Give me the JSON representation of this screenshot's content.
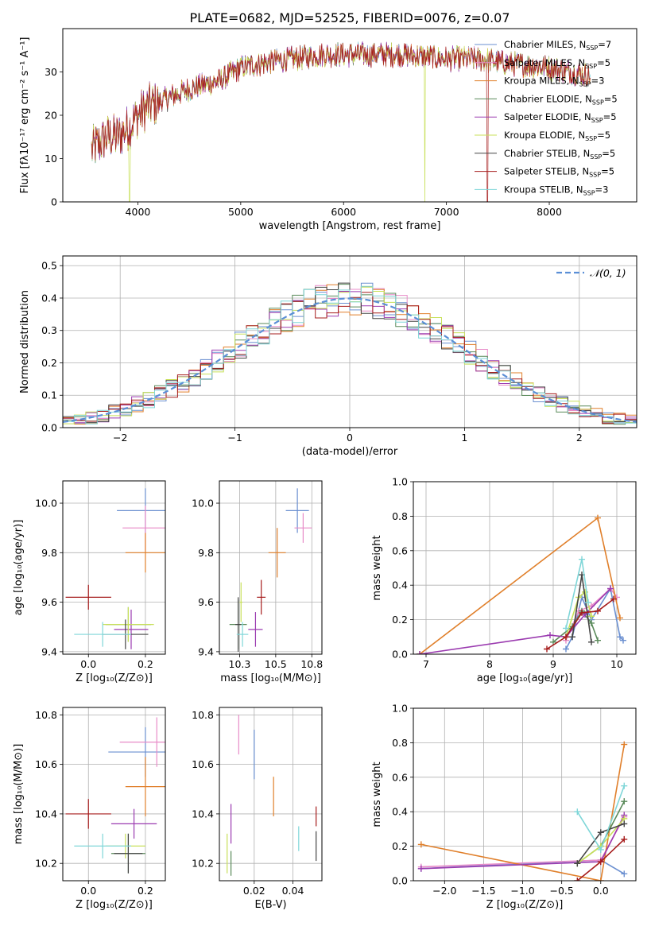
{
  "figure": {
    "title": "PLATE=0682, MJD=52525, FIBERID=0076, z=0.07"
  },
  "series_colors": [
    "#6a8fd0",
    "#e88bc8",
    "#e07f2a",
    "#5a8a5a",
    "#9b3bb0",
    "#c8e05a",
    "#444444",
    "#a61c1c",
    "#7fd6d8"
  ],
  "chart_data": [
    {
      "id": "spectrum",
      "type": "line",
      "title": "PLATE=0682, MJD=52525, FIBERID=0076, z=0.07",
      "xlabel": "wavelength [Angstrom, rest frame]",
      "ylabel": "Flux [fλ10⁻¹⁷ erg cm⁻² s⁻¹ A⁻¹]",
      "xlim": [
        3270,
        8850
      ],
      "ylim": [
        0,
        40
      ],
      "xticks": [
        4000,
        5000,
        6000,
        7000,
        8000
      ],
      "yticks": [
        0,
        10,
        20,
        30
      ],
      "legend_position": "top-right",
      "continuum_x": [
        3550,
        3700,
        3800,
        3900,
        4000,
        4100,
        4300,
        4500,
        4800,
        5000,
        5200,
        5500,
        5800,
        6000,
        6300,
        6600,
        7000,
        7300,
        7600,
        8000,
        8400
      ],
      "continuum_y": [
        12,
        15,
        15,
        17,
        20,
        22,
        24,
        26,
        28,
        31,
        32,
        33,
        34,
        34,
        34,
        34,
        33,
        33,
        32,
        31,
        29
      ],
      "series": [
        {
          "name": "Chabrier MILES, N",
          "sub": "SSP",
          "suffix": "=7"
        },
        {
          "name": "Salpeter MILES, N",
          "sub": "SSP",
          "suffix": "=5"
        },
        {
          "name": "Kroupa MILES, N",
          "sub": "SSP",
          "suffix": "=3"
        },
        {
          "name": "Chabrier ELODIE, N",
          "sub": "SSP",
          "suffix": "=5"
        },
        {
          "name": "Salpeter ELODIE, N",
          "sub": "SSP",
          "suffix": "=5"
        },
        {
          "name": "Kroupa ELODIE, N",
          "sub": "SSP",
          "suffix": "=5"
        },
        {
          "name": "Chabrier STELIB, N",
          "sub": "SSP",
          "suffix": "=5"
        },
        {
          "name": "Salpeter STELIB, N",
          "sub": "SSP",
          "suffix": "=5"
        },
        {
          "name": "Kroupa STELIB, N",
          "sub": "SSP",
          "suffix": "=3"
        }
      ]
    },
    {
      "id": "residuals",
      "type": "histogram",
      "xlabel": "(data-model)/error",
      "ylabel": "Normed distribution",
      "xlim": [
        -2.5,
        2.5
      ],
      "ylim": [
        0,
        0.53
      ],
      "xticks": [
        -2,
        -1,
        0,
        1,
        2
      ],
      "yticks": [
        0.0,
        0.1,
        0.2,
        0.3,
        0.4,
        0.5
      ],
      "bin_width": 0.1,
      "gaussian_label": "𝒩(0, 1)",
      "legend_position": "top-right"
    },
    {
      "id": "age-vs-Z",
      "type": "scatter",
      "xlabel": "Z [log₁₀(Z/Z⊙)]",
      "ylabel": "age  [log₁₀(age/yr)]",
      "xlim": [
        -0.09,
        0.27
      ],
      "ylim": [
        9.39,
        10.09
      ],
      "xticks": [
        0.0,
        0.2
      ],
      "yticks": [
        9.4,
        9.6,
        9.8,
        10.0
      ],
      "points": [
        {
          "x": 0.2,
          "y": 9.97,
          "xerr": 0.1,
          "yerr": 0.09
        },
        {
          "x": 0.2,
          "y": 9.9,
          "xerr": 0.08,
          "yerr": 0.09
        },
        {
          "x": 0.2,
          "y": 9.8,
          "xerr": 0.07,
          "yerr": 0.08
        },
        {
          "x": 0.14,
          "y": 9.51,
          "xerr": 0.08,
          "yerr": 0.07
        },
        {
          "x": 0.15,
          "y": 9.49,
          "xerr": 0.06,
          "yerr": 0.08
        },
        {
          "x": 0.14,
          "y": 9.51,
          "xerr": 0.09,
          "yerr": 0.07
        },
        {
          "x": 0.13,
          "y": 9.47,
          "xerr": 0.08,
          "yerr": 0.06
        },
        {
          "x": 0.0,
          "y": 9.62,
          "xerr": 0.08,
          "yerr": 0.05
        },
        {
          "x": 0.05,
          "y": 9.47,
          "xerr": 0.1,
          "yerr": 0.05
        }
      ]
    },
    {
      "id": "age-vs-mass",
      "type": "scatter",
      "xlabel": "mass [log₁₀(M/M⊙)]",
      "ylabel": "",
      "xlim": [
        10.11,
        10.82
      ],
      "ylim": [
        9.39,
        10.09
      ],
      "xticks": [
        10.25,
        10.5,
        10.75
      ],
      "yticks": [
        9.4,
        9.6,
        9.8,
        10.0
      ],
      "points": [
        {
          "x": 10.65,
          "y": 9.97,
          "xerr": 0.08,
          "yerr": 0.09
        },
        {
          "x": 10.69,
          "y": 9.9,
          "xerr": 0.06,
          "yerr": 0.06
        },
        {
          "x": 10.51,
          "y": 9.8,
          "xerr": 0.06,
          "yerr": 0.1
        },
        {
          "x": 10.24,
          "y": 9.51,
          "xerr": 0.06,
          "yerr": 0.1
        },
        {
          "x": 10.36,
          "y": 9.49,
          "xerr": 0.05,
          "yerr": 0.07
        },
        {
          "x": 10.26,
          "y": 9.6,
          "xerr": 0.01,
          "yerr": 0.08
        },
        {
          "x": 10.24,
          "y": 9.51,
          "xerr": 0.02,
          "yerr": 0.11
        },
        {
          "x": 10.4,
          "y": 9.62,
          "xerr": 0.03,
          "yerr": 0.07
        },
        {
          "x": 10.27,
          "y": 9.47,
          "xerr": 0.04,
          "yerr": 0.05
        }
      ]
    },
    {
      "id": "weight-vs-age",
      "type": "line",
      "xlabel": "age  [log₁₀(age/yr)]",
      "ylabel": "mass weight",
      "xlim": [
        6.8,
        10.3
      ],
      "ylim": [
        0,
        1
      ],
      "xticks": [
        7,
        8,
        9,
        10
      ],
      "yticks": [
        0.0,
        0.2,
        0.4,
        0.6,
        0.8,
        1.0
      ],
      "series": [
        {
          "x": [
            9.2,
            9.3,
            9.45,
            9.6,
            9.9,
            10.05,
            10.1
          ],
          "y": [
            0.03,
            0.1,
            0.33,
            0.2,
            0.38,
            0.1,
            0.08
          ]
        },
        {
          "x": [
            9.2,
            9.4,
            9.6,
            9.9,
            10.0
          ],
          "y": [
            0.08,
            0.25,
            0.28,
            0.38,
            0.33
          ]
        },
        {
          "x": [
            6.9,
            9.7,
            10.05
          ],
          "y": [
            0.0,
            0.79,
            0.21
          ]
        },
        {
          "x": [
            9.0,
            9.3,
            9.45,
            9.6,
            9.7
          ],
          "y": [
            0.07,
            0.16,
            0.25,
            0.18,
            0.08
          ]
        },
        {
          "x": [
            6.9,
            8.95,
            9.2,
            9.5,
            9.9
          ],
          "y": [
            0.0,
            0.11,
            0.1,
            0.23,
            0.38
          ]
        },
        {
          "x": [
            9.2,
            9.4,
            9.5,
            9.6
          ],
          "y": [
            0.1,
            0.33,
            0.36,
            0.22
          ]
        },
        {
          "x": [
            9.3,
            9.45,
            9.6
          ],
          "y": [
            0.1,
            0.46,
            0.07
          ]
        },
        {
          "x": [
            8.9,
            9.2,
            9.45,
            9.7,
            9.95
          ],
          "y": [
            0.03,
            0.1,
            0.24,
            0.25,
            0.32
          ]
        },
        {
          "x": [
            9.2,
            9.45,
            9.55
          ],
          "y": [
            0.15,
            0.55,
            0.3
          ]
        }
      ]
    },
    {
      "id": "mass-vs-Z",
      "type": "scatter",
      "xlabel": "Z [log₁₀(Z/Z⊙)]",
      "ylabel": "mass [log₁₀(M/M⊙)]",
      "xlim": [
        -0.09,
        0.27
      ],
      "ylim": [
        10.13,
        10.83
      ],
      "xticks": [
        0.0,
        0.2
      ],
      "yticks": [
        10.2,
        10.4,
        10.6,
        10.8
      ],
      "points": [
        {
          "x": 0.2,
          "y": 10.65,
          "xerr": 0.13,
          "yerr": 0.1
        },
        {
          "x": 0.24,
          "y": 10.69,
          "xerr": 0.13,
          "yerr": 0.1
        },
        {
          "x": 0.2,
          "y": 10.51,
          "xerr": 0.07,
          "yerr": 0.12
        },
        {
          "x": 0.14,
          "y": 10.24,
          "xerr": 0.06,
          "yerr": 0.08
        },
        {
          "x": 0.16,
          "y": 10.36,
          "xerr": 0.08,
          "yerr": 0.06
        },
        {
          "x": 0.13,
          "y": 10.27,
          "xerr": 0.07,
          "yerr": 0.05
        },
        {
          "x": 0.14,
          "y": 10.24,
          "xerr": 0.05,
          "yerr": 0.08
        },
        {
          "x": 0.0,
          "y": 10.4,
          "xerr": 0.08,
          "yerr": 0.06
        },
        {
          "x": 0.05,
          "y": 10.27,
          "xerr": 0.1,
          "yerr": 0.05
        }
      ]
    },
    {
      "id": "mass-vs-EBV",
      "type": "scatter",
      "xlabel": "E(B-V)",
      "ylabel": "",
      "xlim": [
        0.002,
        0.055
      ],
      "ylim": [
        10.13,
        10.83
      ],
      "xticks": [
        0.02,
        0.04
      ],
      "yticks": [
        10.2,
        10.4,
        10.6,
        10.8
      ],
      "points": [
        {
          "x": 0.02,
          "y": 10.64,
          "xerr": 0,
          "yerr": 0.1
        },
        {
          "x": 0.012,
          "y": 10.72,
          "xerr": 0,
          "yerr": 0.08
        },
        {
          "x": 0.03,
          "y": 10.47,
          "xerr": 0,
          "yerr": 0.08
        },
        {
          "x": 0.008,
          "y": 10.2,
          "xerr": 0,
          "yerr": 0.05
        },
        {
          "x": 0.008,
          "y": 10.36,
          "xerr": 0,
          "yerr": 0.08
        },
        {
          "x": 0.006,
          "y": 10.24,
          "xerr": 0,
          "yerr": 0.08
        },
        {
          "x": 0.052,
          "y": 10.27,
          "xerr": 0,
          "yerr": 0.06
        },
        {
          "x": 0.052,
          "y": 10.39,
          "xerr": 0,
          "yerr": 0.04
        },
        {
          "x": 0.043,
          "y": 10.3,
          "xerr": 0,
          "yerr": 0.05
        }
      ]
    },
    {
      "id": "weight-vs-Z",
      "type": "line",
      "xlabel": "Z [log₁₀(Z/Z⊙)]",
      "ylabel": "mass weight",
      "xlim": [
        -2.4,
        0.45
      ],
      "ylim": [
        0,
        1
      ],
      "xticks": [
        -2.0,
        -1.5,
        -1.0,
        -0.5,
        0.0
      ],
      "yticks": [
        0.0,
        0.2,
        0.4,
        0.6,
        0.8,
        1.0
      ],
      "series": [
        {
          "x": [
            -2.3,
            0.0,
            0.3
          ],
          "y": [
            0.07,
            0.12,
            0.04
          ]
        },
        {
          "x": [
            -2.3,
            0.0,
            0.3
          ],
          "y": [
            0.08,
            0.12,
            0.37
          ]
        },
        {
          "x": [
            -2.3,
            0.0,
            0.3
          ],
          "y": [
            0.21,
            0.0,
            0.79
          ]
        },
        {
          "x": [
            -0.3,
            0.0,
            0.3
          ],
          "y": [
            0.1,
            0.2,
            0.46
          ]
        },
        {
          "x": [
            -2.3,
            0.0,
            0.3
          ],
          "y": [
            0.07,
            0.11,
            0.38
          ]
        },
        {
          "x": [
            -0.3,
            0.0,
            0.3
          ],
          "y": [
            0.1,
            0.2,
            0.36
          ]
        },
        {
          "x": [
            -0.3,
            0.0,
            0.3
          ],
          "y": [
            0.1,
            0.28,
            0.33
          ]
        },
        {
          "x": [
            -0.3,
            0.0,
            0.3
          ],
          "y": [
            0.0,
            0.11,
            0.24
          ]
        },
        {
          "x": [
            -0.3,
            0.0,
            0.3
          ],
          "y": [
            0.4,
            0.18,
            0.55
          ]
        }
      ]
    }
  ]
}
